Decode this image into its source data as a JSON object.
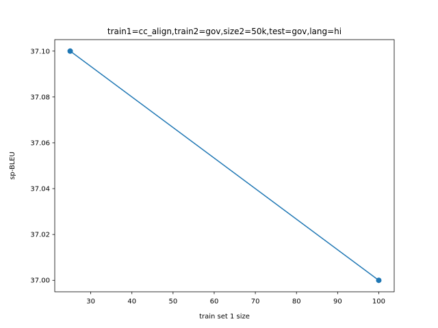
{
  "chart_data": {
    "type": "line",
    "title": "train1=cc_align,train2=gov,size2=50k,test=gov,lang=hi",
    "xlabel": "train set 1 size",
    "ylabel": "sp-BLEU",
    "x": [
      25,
      100
    ],
    "series": [
      {
        "values": [
          37.1,
          37.0
        ],
        "color": "#1f77b4"
      }
    ],
    "xlim": [
      21.25,
      103.75
    ],
    "ylim": [
      36.995,
      37.105
    ],
    "xticks": [
      30,
      40,
      50,
      60,
      70,
      80,
      90,
      100
    ],
    "xtick_labels": [
      "30",
      "40",
      "50",
      "60",
      "70",
      "80",
      "90",
      "100"
    ],
    "yticks": [
      37.0,
      37.02,
      37.04,
      37.06,
      37.08,
      37.1
    ],
    "ytick_labels": [
      "37.00",
      "37.02",
      "37.04",
      "37.06",
      "37.08",
      "37.10"
    ],
    "grid": false,
    "legend": false
  }
}
